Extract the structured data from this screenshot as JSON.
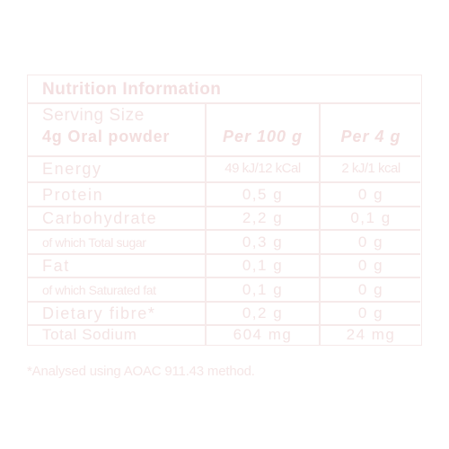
{
  "title": "Nutrition Information",
  "serving": {
    "label": "Serving Size",
    "amount": "4g Oral powder"
  },
  "columns": {
    "per100": "Per 100 g",
    "perServing": "Per 4 g"
  },
  "rows": [
    {
      "label": "Energy",
      "per100": "49 kJ/12 kCal",
      "perServing": "2 kJ/1 kcal"
    },
    {
      "label": "Protein",
      "per100": "0,5 g",
      "perServing": "0 g"
    },
    {
      "label": "Carbohydrate",
      "per100": "2,2 g",
      "perServing": "0,1 g"
    },
    {
      "label": "of which Total sugar",
      "per100": "0,3 g",
      "perServing": "0 g"
    },
    {
      "label": "Fat",
      "per100": "0,1 g",
      "perServing": "0 g"
    },
    {
      "label": "of which Saturated fat",
      "per100": "0,1 g",
      "perServing": "0 g"
    },
    {
      "label": "Dietary fibre*",
      "per100": "0,2 g",
      "perServing": "0 g"
    },
    {
      "label": "Total Sodium",
      "per100": "604 mg",
      "perServing": "24 mg"
    }
  ],
  "footnote": "*Analysed using AOAC 911.43 method."
}
